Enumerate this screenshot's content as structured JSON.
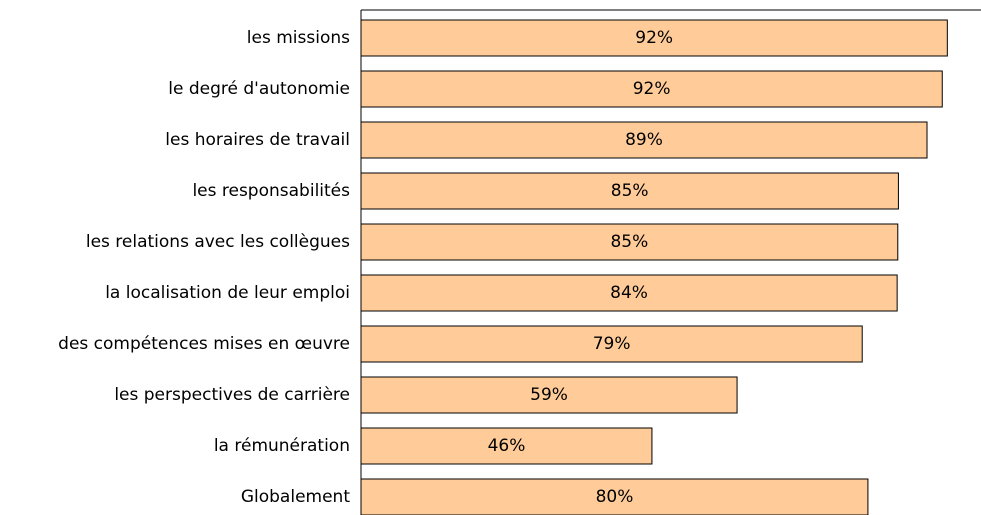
{
  "chart_data": {
    "type": "barh",
    "categories": [
      "les missions",
      "le degré d'autonomie",
      "les horaires de travail",
      "les responsabilités",
      "les relations avec les collègues",
      "la localisation de leur emploi",
      "des compétences mises en œuvre",
      "les perspectives de carrière",
      "la rémunération",
      "Globalement"
    ],
    "values": [
      92.3,
      91.5,
      89.1,
      84.6,
      84.5,
      84.4,
      78.9,
      59.2,
      45.8,
      79.8
    ],
    "value_labels": [
      "92%",
      "92%",
      "89%",
      "85%",
      "85%",
      "84%",
      "79%",
      "59%",
      "46%",
      "80%"
    ],
    "color": "#ffcc99",
    "xlim": [
      0,
      97.6
    ]
  }
}
